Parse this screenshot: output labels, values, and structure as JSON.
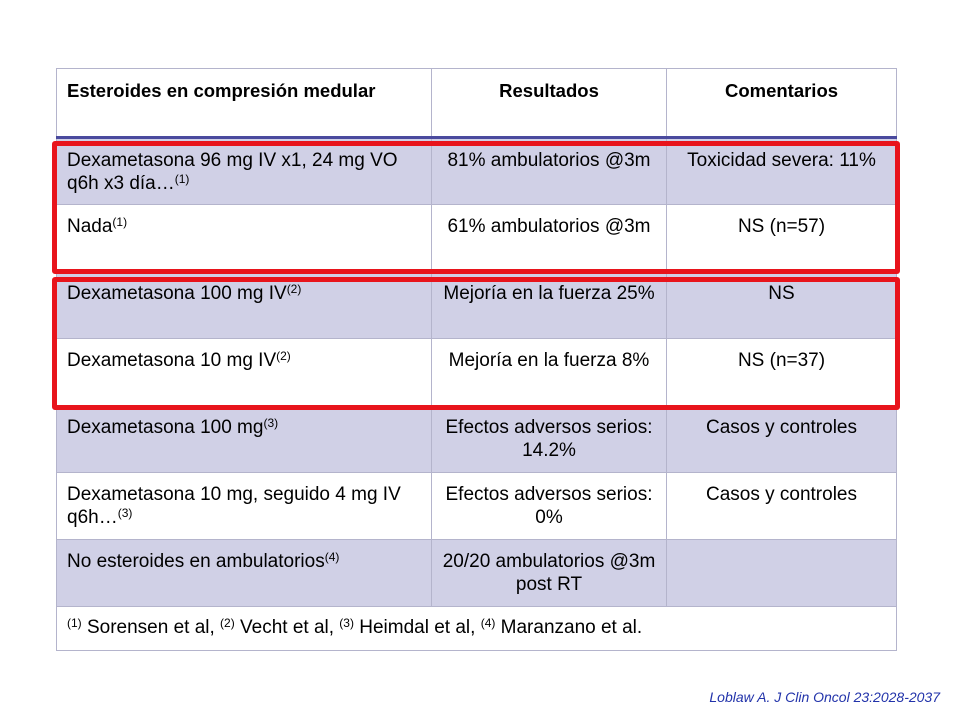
{
  "table": {
    "headers": [
      "Esteroides en compresión medular",
      "Resultados",
      "Comentarios"
    ],
    "rows": [
      {
        "treatment": "Dexametasona 96 mg IV x1, 24 mg VO q6h x3 día…",
        "ref": "(1)",
        "result": "81% ambulatorios @3m",
        "comment": "Toxicidad severa: 11%"
      },
      {
        "treatment": "Nada",
        "ref": "(1)",
        "result": "61% ambulatorios @3m",
        "comment": "NS (n=57)"
      },
      {
        "treatment": "Dexametasona 100 mg IV",
        "ref": "(2)",
        "result": "Mejoría en la fuerza 25%",
        "comment": "NS"
      },
      {
        "treatment": "Dexametasona 10 mg IV",
        "ref": "(2)",
        "result": "Mejoría en la fuerza 8%",
        "comment": "NS (n=37)"
      },
      {
        "treatment": "Dexametasona 100 mg",
        "ref": "(3)",
        "result": "Efectos adversos serios: 14.2%",
        "comment": "Casos y controles"
      },
      {
        "treatment": "Dexametasona 10 mg, seguido 4 mg IV q6h…",
        "ref": "(3)",
        "result": "Efectos adversos serios: 0%",
        "comment": "Casos y controles"
      },
      {
        "treatment": "No esteroides en ambulatorios",
        "ref": "(4)",
        "result": "20/20 ambulatorios @3m post RT",
        "comment": ""
      }
    ],
    "footnotes": [
      {
        "ref": "(1)",
        "text": " Sorensen et al, "
      },
      {
        "ref": "(2)",
        "text": " Vecht et al, "
      },
      {
        "ref": "(3)",
        "text": " Heimdal et al, "
      },
      {
        "ref": "(4)",
        "text": " Maranzano et al."
      }
    ]
  },
  "citation": "Loblaw A. J Clin Oncol 23:2028-2037",
  "colors": {
    "row_shaded": "#d0d0e6",
    "highlight_border": "#e8141c",
    "header_rule": "#4a4a9e",
    "citation_text": "#2233aa"
  }
}
